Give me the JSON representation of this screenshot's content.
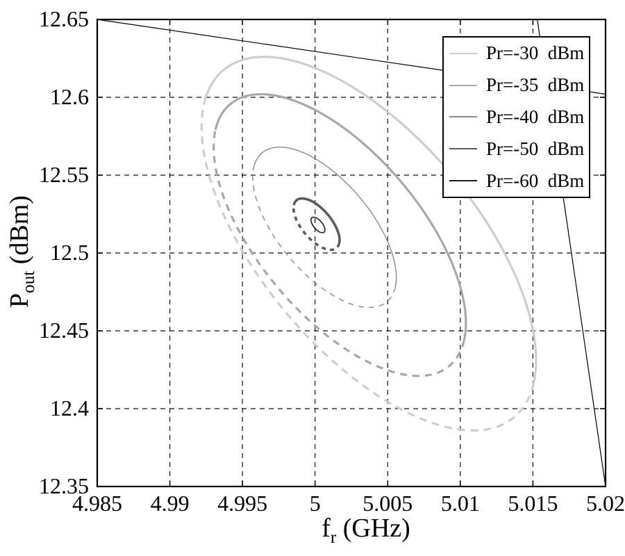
{
  "figure": {
    "background": "#ffffff"
  },
  "axis_titles": {
    "x": {
      "main": "f",
      "sub": "r",
      "unit": " (GHz)"
    },
    "y": {
      "main": "P",
      "sub": "out",
      "unit": " (dBm)"
    }
  },
  "chart_data": {
    "type": "line",
    "title": "",
    "xlabel": "f_r (GHz)",
    "ylabel": "P_out (dBm)",
    "xlim": [
      4.985,
      5.02
    ],
    "ylim": [
      12.35,
      12.65
    ],
    "grid": true,
    "grid_style": "dashed",
    "legend_position": "top-right",
    "xticks": [
      4.985,
      4.99,
      4.995,
      5,
      5.005,
      5.01,
      5.015,
      5.02
    ],
    "xticklabels": [
      "4.985",
      "4.99",
      "4.995",
      "5",
      "5.005",
      "5.01",
      "5.015",
      "5.02"
    ],
    "yticks": [
      12.65,
      12.6,
      12.55,
      12.5,
      12.45,
      12.4,
      12.35
    ],
    "yticklabels": [
      "12.65",
      "12.6",
      "12.55",
      "12.5",
      "12.45",
      "12.4",
      "12.35"
    ],
    "fixed_point": {
      "f_GHz": 5.0,
      "P_dBm": 12.52
    },
    "series": [
      {
        "id": "pr-30",
        "label": "Pr=-30  dBm",
        "color": "#cecece",
        "width": 3.2,
        "dash": "11 8",
        "lower_dashed": true,
        "tilt_deg": -40,
        "elongation": 2.1,
        "f_range": [
          4.9917,
          5.0157
        ],
        "P_range": [
          12.386,
          12.626
        ]
      },
      {
        "id": "pr-35",
        "label": "Pr=-35  dBm",
        "color": "#a9a9a9",
        "width": 3.2,
        "dash": "10 8",
        "lower_dashed": true,
        "tilt_deg": -40,
        "elongation": 2.1,
        "f_range": [
          4.9932,
          5.0102
        ],
        "P_range": [
          12.421,
          12.602
        ]
      },
      {
        "id": "pr-40",
        "label": "Pr=-40  dBm",
        "color": "#8b8b8b",
        "width": 1.4,
        "dash": "8 7",
        "lower_dashed": true,
        "tilt_deg": -40,
        "elongation": 2.1,
        "f_range": [
          4.9961,
          5.0052
        ],
        "P_range": [
          12.465,
          12.568
        ]
      },
      {
        "id": "pr-50",
        "label": "Pr=-50  dBm",
        "color": "#5c5c5c",
        "width": 3.6,
        "dash": "6 6",
        "lower_dashed": true,
        "tilt_deg": -40,
        "elongation": 2.1,
        "f_range": [
          4.9987,
          5.0015
        ],
        "P_range": [
          12.502,
          12.535
        ]
      },
      {
        "id": "pr-60",
        "label": "Pr=-60  dBm",
        "color": "#1c1c1c",
        "width": 1.6,
        "dash": "",
        "lower_dashed": false,
        "tilt_deg": -40,
        "elongation": 2.1,
        "f_range": [
          4.9997,
          5.0007
        ],
        "P_range": [
          12.513,
          12.523
        ]
      }
    ],
    "stray_lines": [
      {
        "f": [
          4.985,
          5.02
        ],
        "P": [
          12.65,
          12.602
        ]
      },
      {
        "f": [
          5.0153,
          5.02
        ],
        "P": [
          12.65,
          12.35
        ]
      }
    ]
  }
}
